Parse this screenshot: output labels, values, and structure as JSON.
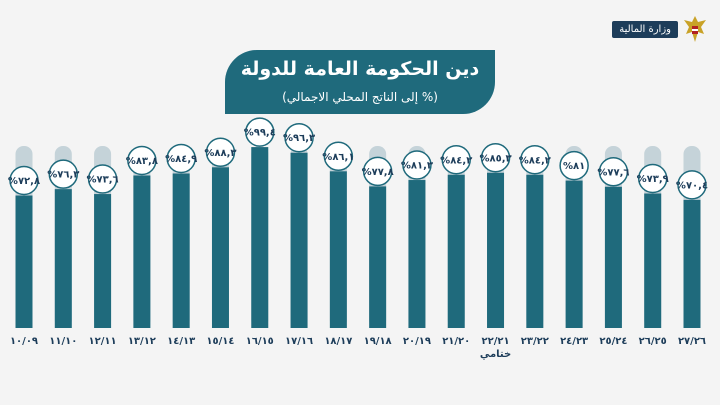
{
  "ministry_label": "وزارة المالية",
  "icons": {
    "emblem": "eagle-emblem-icon"
  },
  "colors": {
    "bar": "#1f6a7c",
    "track": "#c5d3d9",
    "circle_border": "#1f6a7c",
    "text": "#1d3d5a",
    "background": "#f4f4f4"
  },
  "chart_data": {
    "type": "bar",
    "title": "دين الحكومة العامة للدولة",
    "subtitle": "(% إلى الناتج المحلي الاجمالي)",
    "categories": [
      "١٠/٠٩",
      "١١/١٠",
      "١٢/١١",
      "١٣/١٢",
      "١٤/١٣",
      "١٥/١٤",
      "١٦/١٥",
      "١٧/١٦",
      "١٨/١٧",
      "١٩/١٨",
      "٢٠/١٩",
      "٢١/٢٠",
      "٢٢/٢١",
      "٢٣/٢٢",
      "٢٤/٢٣",
      "٢٥/٢٤",
      "٢٦/٢٥",
      "٢٧/٢٦"
    ],
    "values": [
      72.8,
      76.3,
      73.6,
      83.8,
      84.9,
      88.3,
      99.4,
      96.3,
      86.1,
      77.8,
      81.3,
      84.2,
      85.3,
      84.2,
      81,
      77.6,
      73.9,
      70.4
    ],
    "value_labels": [
      "%٧٢,٨",
      "%٧٦,٣",
      "%٧٣,٦",
      "%٨٣,٨",
      "%٨٤,٩",
      "%٨٨,٣",
      "%٩٩,٤",
      "%٩٦,٣",
      "%٨٦,١",
      "%٧٧,٨",
      "%٨١,٣",
      "%٨٤,٢",
      "%٨٥,٣",
      "%٨٤,٢",
      "%٨١",
      "%٧٧,٦",
      "%٧٣,٩",
      "%٧٠,٤"
    ],
    "annotations": [
      {
        "category": "٢٢/٢١",
        "text": "ختامي"
      }
    ],
    "grid": false,
    "legend": "none"
  }
}
